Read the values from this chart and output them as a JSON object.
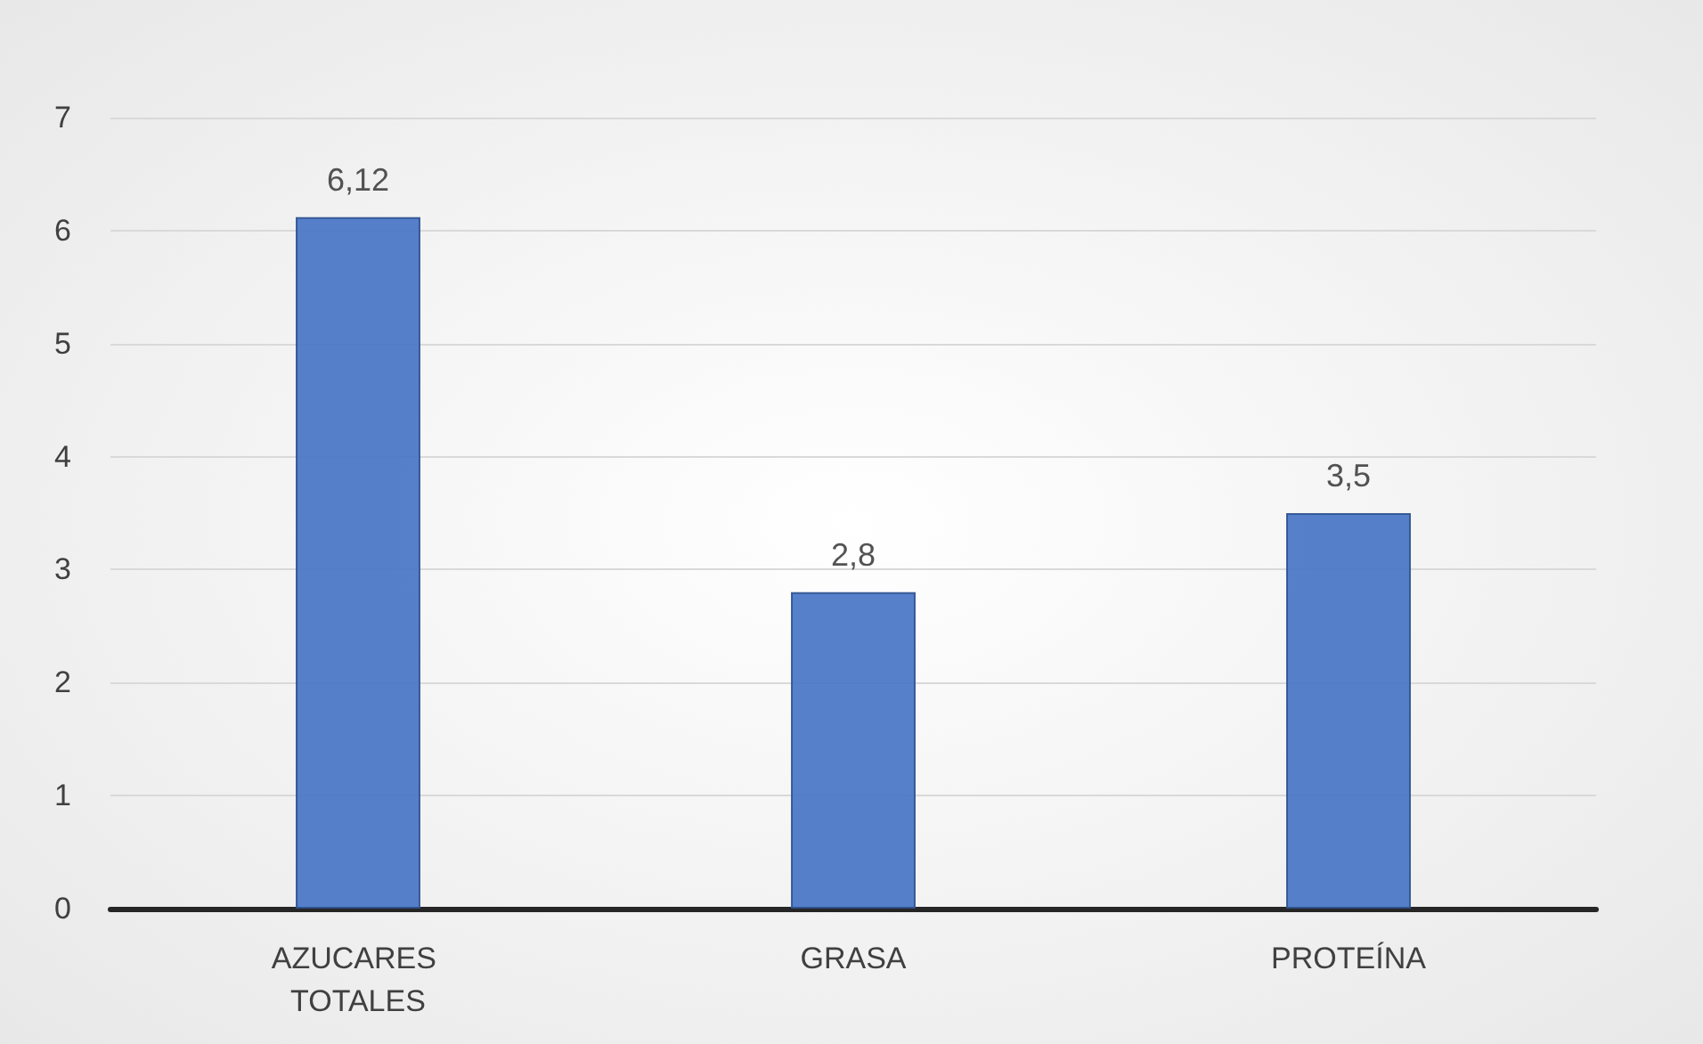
{
  "chart_data": {
    "type": "bar",
    "categories": [
      "AZUCARES TOTALES",
      "GRASA",
      "PROTEÍNA"
    ],
    "values": [
      6.12,
      2.8,
      3.5
    ],
    "value_labels": [
      "6,12",
      "2,8",
      "3,5"
    ],
    "color": "#4472c4",
    "ylim": [
      0,
      7
    ],
    "yticks": [
      0,
      1,
      2,
      3,
      4,
      5,
      6,
      7
    ],
    "grid": "y"
  }
}
